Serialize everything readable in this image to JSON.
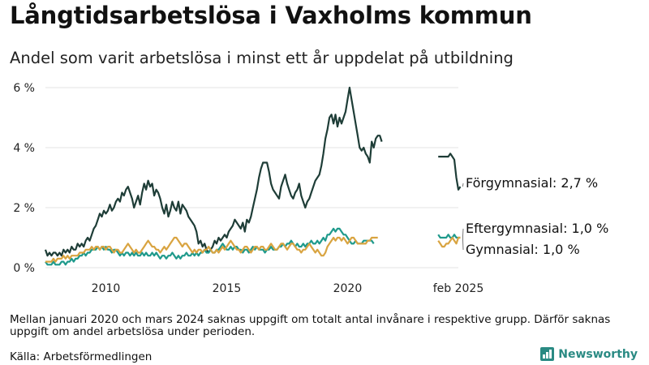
{
  "title": "Långtidsarbetslösa i Vaxholms kommun",
  "subtitle": "Andel som varit arbetslösa i minst ett år uppdelat på utbildning",
  "footnote": "Mellan januari 2020 och mars 2024 saknas uppgift om totalt antal invånare i respektive grupp. Därför saknas uppgift om andel arbetslösa under perioden.",
  "source": "Källa: Arbetsförmedlingen",
  "brand": "Newsworthy",
  "colors": {
    "forgymnasial": "#1e3d37",
    "eftergymnasial": "#1f9a8c",
    "gymnasial": "#d9a441"
  },
  "chart_data": {
    "type": "line",
    "x_unit": "month",
    "ylim": [
      0,
      6
    ],
    "y_ticks": [
      0,
      2,
      4,
      6
    ],
    "y_tick_labels": [
      "0 %",
      "2 %",
      "4 %",
      "6 %"
    ],
    "x_ticks": [
      "2010",
      "2015",
      "2020",
      "feb 2025"
    ],
    "grid": "horizontal",
    "series": [
      {
        "name": "Förgymnasial",
        "end_label": "Förgymnasial: 2,7 %",
        "segments": [
          {
            "start": "2008-01",
            "values": [
              0.6,
              0.4,
              0.5,
              0.4,
              0.5,
              0.5,
              0.4,
              0.5,
              0.4,
              0.6,
              0.5,
              0.6,
              0.5,
              0.7,
              0.6,
              0.6,
              0.8,
              0.7,
              0.8,
              0.7,
              0.9,
              1.0,
              0.9,
              1.1,
              1.3,
              1.4,
              1.6,
              1.8,
              1.7,
              1.9,
              1.8,
              1.9,
              2.1,
              1.9,
              2.0,
              2.2,
              2.3,
              2.2,
              2.5,
              2.4,
              2.6,
              2.7,
              2.5,
              2.3,
              2.0,
              2.2,
              2.4,
              2.1,
              2.5,
              2.8,
              2.6,
              2.9,
              2.7,
              2.8,
              2.4,
              2.6,
              2.5,
              2.3,
              2.0,
              1.8,
              2.1,
              1.7,
              1.9,
              2.2,
              2.0,
              1.9,
              2.2,
              1.8,
              2.1,
              2.0,
              1.9,
              1.7,
              1.6,
              1.5,
              1.4,
              1.2,
              0.8,
              0.9,
              0.7,
              0.8,
              0.6,
              0.5,
              0.6,
              0.7,
              0.9,
              0.8,
              1.0,
              0.9,
              1.0,
              1.1,
              1.0,
              1.2,
              1.3,
              1.4,
              1.6,
              1.5,
              1.4,
              1.3,
              1.5,
              1.2,
              1.6,
              1.5,
              1.7,
              2.0,
              2.3,
              2.6,
              3.0,
              3.3,
              3.5,
              3.5,
              3.5,
              3.2,
              2.8,
              2.6,
              2.5,
              2.4,
              2.3,
              2.7,
              2.9,
              3.1,
              2.8,
              2.6,
              2.4,
              2.3,
              2.5,
              2.6,
              2.8,
              2.4,
              2.2,
              2.0,
              2.2,
              2.3,
              2.5,
              2.7,
              2.9,
              3.0,
              3.1,
              3.4,
              3.8,
              4.3,
              4.6,
              5.0,
              5.1,
              4.8,
              5.1,
              4.7,
              5.0,
              4.8,
              5.0,
              5.2,
              5.6,
              6.0,
              5.6,
              5.2,
              4.8,
              4.4,
              4.0,
              3.9,
              4.0,
              3.8,
              3.7,
              3.5,
              4.2,
              4.0,
              4.3,
              4.4,
              4.4,
              4.2
            ]
          },
          {
            "start": "2024-04",
            "values": [
              3.7,
              3.7,
              3.7,
              3.7,
              3.7,
              3.7,
              3.8,
              3.7,
              3.6,
              3.0,
              2.6,
              2.7
            ]
          }
        ]
      },
      {
        "name": "Eftergymnasial",
        "end_label": "Eftergymnasial: 1,0 %",
        "segments": [
          {
            "start": "2008-01",
            "values": [
              0.2,
              0.1,
              0.1,
              0.1,
              0.2,
              0.1,
              0.1,
              0.1,
              0.2,
              0.2,
              0.1,
              0.2,
              0.2,
              0.3,
              0.2,
              0.3,
              0.3,
              0.4,
              0.4,
              0.5,
              0.4,
              0.5,
              0.5,
              0.6,
              0.6,
              0.6,
              0.7,
              0.6,
              0.7,
              0.6,
              0.7,
              0.6,
              0.6,
              0.5,
              0.6,
              0.6,
              0.5,
              0.4,
              0.5,
              0.4,
              0.5,
              0.5,
              0.4,
              0.5,
              0.4,
              0.5,
              0.4,
              0.4,
              0.5,
              0.4,
              0.5,
              0.4,
              0.4,
              0.5,
              0.4,
              0.5,
              0.4,
              0.3,
              0.4,
              0.4,
              0.3,
              0.4,
              0.4,
              0.5,
              0.4,
              0.3,
              0.4,
              0.3,
              0.4,
              0.4,
              0.5,
              0.4,
              0.4,
              0.5,
              0.4,
              0.5,
              0.4,
              0.5,
              0.5,
              0.6,
              0.5,
              0.5,
              0.6,
              0.5,
              0.5,
              0.6,
              0.6,
              0.7,
              0.8,
              0.7,
              0.6,
              0.6,
              0.7,
              0.6,
              0.7,
              0.7,
              0.6,
              0.6,
              0.5,
              0.6,
              0.6,
              0.5,
              0.6,
              0.7,
              0.6,
              0.7,
              0.6,
              0.6,
              0.6,
              0.5,
              0.6,
              0.6,
              0.7,
              0.6,
              0.6,
              0.6,
              0.7,
              0.7,
              0.8,
              0.7,
              0.8,
              0.8,
              0.9,
              0.8,
              0.7,
              0.8,
              0.7,
              0.7,
              0.8,
              0.7,
              0.8,
              0.8,
              0.9,
              0.8,
              0.8,
              0.9,
              0.8,
              0.9,
              1.0,
              0.9,
              1.1,
              1.1,
              1.2,
              1.3,
              1.2,
              1.3,
              1.3,
              1.2,
              1.1,
              1.1,
              1.0,
              0.9,
              0.8,
              0.8,
              0.9,
              0.8,
              0.8,
              0.8,
              0.9,
              0.9,
              0.9,
              0.9,
              0.9,
              0.8
            ]
          },
          {
            "start": "2024-04",
            "values": [
              1.1,
              1.0,
              1.0,
              1.0,
              1.0,
              1.1,
              1.0,
              1.0,
              1.1,
              1.0,
              1.0,
              1.0
            ]
          }
        ]
      },
      {
        "name": "Gymnasial",
        "end_label": "Gymnasial: 1,0 %",
        "segments": [
          {
            "start": "2008-01",
            "values": [
              0.2,
              0.2,
              0.2,
              0.2,
              0.3,
              0.2,
              0.3,
              0.3,
              0.3,
              0.4,
              0.3,
              0.4,
              0.3,
              0.4,
              0.4,
              0.4,
              0.4,
              0.5,
              0.5,
              0.5,
              0.6,
              0.6,
              0.6,
              0.7,
              0.6,
              0.7,
              0.7,
              0.6,
              0.7,
              0.7,
              0.6,
              0.7,
              0.7,
              0.6,
              0.5,
              0.6,
              0.6,
              0.5,
              0.5,
              0.6,
              0.7,
              0.8,
              0.7,
              0.6,
              0.5,
              0.6,
              0.5,
              0.5,
              0.6,
              0.7,
              0.8,
              0.9,
              0.8,
              0.7,
              0.7,
              0.6,
              0.6,
              0.5,
              0.6,
              0.7,
              0.6,
              0.7,
              0.8,
              0.9,
              1.0,
              1.0,
              0.9,
              0.8,
              0.7,
              0.8,
              0.8,
              0.7,
              0.6,
              0.5,
              0.6,
              0.5,
              0.6,
              0.6,
              0.5,
              0.6,
              0.6,
              0.7,
              0.6,
              0.5,
              0.5,
              0.6,
              0.5,
              0.6,
              0.7,
              0.6,
              0.7,
              0.8,
              0.9,
              0.8,
              0.7,
              0.6,
              0.6,
              0.5,
              0.6,
              0.7,
              0.7,
              0.6,
              0.5,
              0.6,
              0.7,
              0.7,
              0.6,
              0.7,
              0.7,
              0.6,
              0.6,
              0.7,
              0.8,
              0.7,
              0.6,
              0.6,
              0.7,
              0.8,
              0.8,
              0.7,
              0.6,
              0.7,
              0.8,
              0.8,
              0.7,
              0.6,
              0.6,
              0.5,
              0.6,
              0.6,
              0.7,
              0.8,
              0.7,
              0.6,
              0.5,
              0.6,
              0.5,
              0.4,
              0.4,
              0.5,
              0.7,
              0.8,
              0.9,
              1.0,
              0.9,
              1.0,
              1.0,
              0.9,
              1.0,
              0.9,
              0.8,
              0.9,
              1.0,
              1.0,
              0.9,
              0.8,
              0.8,
              0.8,
              0.8,
              0.8,
              0.9,
              0.9,
              1.0,
              1.0,
              1.0,
              1.0
            ]
          },
          {
            "start": "2024-04",
            "values": [
              0.9,
              0.8,
              0.7,
              0.7,
              0.8,
              0.8,
              0.9,
              1.0,
              0.9,
              0.8,
              1.0,
              1.0
            ]
          }
        ]
      }
    ]
  }
}
